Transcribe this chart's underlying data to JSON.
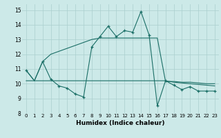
{
  "xlabel": "Humidex (Indice chaleur)",
  "background_color": "#cce9e8",
  "grid_color": "#aacfce",
  "line_color": "#1a6e66",
  "xlim": [
    -0.5,
    23.5
  ],
  "ylim": [
    8,
    15.4
  ],
  "yticks": [
    8,
    9,
    10,
    11,
    12,
    13,
    14,
    15
  ],
  "xticks": [
    0,
    1,
    2,
    3,
    4,
    5,
    6,
    7,
    8,
    9,
    10,
    11,
    12,
    13,
    14,
    15,
    16,
    17,
    18,
    19,
    20,
    21,
    22,
    23
  ],
  "line1_x": [
    0,
    1,
    2,
    3,
    4,
    5,
    6,
    7,
    8,
    9,
    10,
    11,
    12,
    13,
    14,
    15,
    16,
    17,
    18,
    19,
    20,
    21,
    22,
    23
  ],
  "line1_y": [
    10.9,
    10.2,
    11.5,
    12.0,
    12.2,
    12.4,
    12.6,
    12.8,
    13.0,
    13.1,
    13.1,
    13.1,
    13.1,
    13.1,
    13.1,
    13.1,
    13.1,
    10.15,
    10.15,
    10.1,
    10.1,
    10.05,
    10.0,
    10.0
  ],
  "line2_x": [
    0,
    1,
    2,
    3,
    4,
    5,
    6,
    7,
    8,
    9,
    10,
    11,
    12,
    13,
    14,
    15,
    16,
    17,
    18,
    19,
    20,
    21,
    22,
    23
  ],
  "line2_y": [
    10.9,
    10.2,
    11.5,
    10.3,
    9.85,
    9.7,
    9.3,
    9.1,
    12.5,
    13.2,
    13.9,
    13.2,
    13.6,
    13.5,
    14.9,
    13.3,
    8.5,
    10.2,
    9.9,
    9.6,
    9.8,
    9.5,
    9.5,
    9.5
  ],
  "line2_marker_x": [
    0,
    2,
    3,
    4,
    5,
    6,
    7,
    8,
    9,
    10,
    11,
    12,
    13,
    14,
    15,
    16,
    17,
    18,
    19,
    20,
    21,
    22,
    23
  ],
  "line2_marker_y": [
    10.9,
    11.5,
    10.3,
    9.85,
    9.7,
    9.3,
    9.1,
    12.5,
    13.2,
    13.9,
    13.2,
    13.6,
    13.5,
    14.9,
    13.3,
    8.5,
    10.2,
    9.9,
    9.6,
    9.8,
    9.5,
    9.5,
    9.5
  ],
  "line3_x": [
    0,
    1,
    2,
    3,
    4,
    5,
    6,
    7,
    8,
    9,
    10,
    11,
    12,
    13,
    14,
    15,
    16,
    17,
    18,
    19,
    20,
    21,
    22,
    23
  ],
  "line3_y": [
    10.2,
    10.2,
    10.2,
    10.2,
    10.2,
    10.2,
    10.2,
    10.2,
    10.2,
    10.2,
    10.2,
    10.2,
    10.2,
    10.2,
    10.2,
    10.2,
    10.2,
    10.2,
    10.1,
    10.05,
    10.0,
    9.95,
    9.9,
    9.85
  ]
}
